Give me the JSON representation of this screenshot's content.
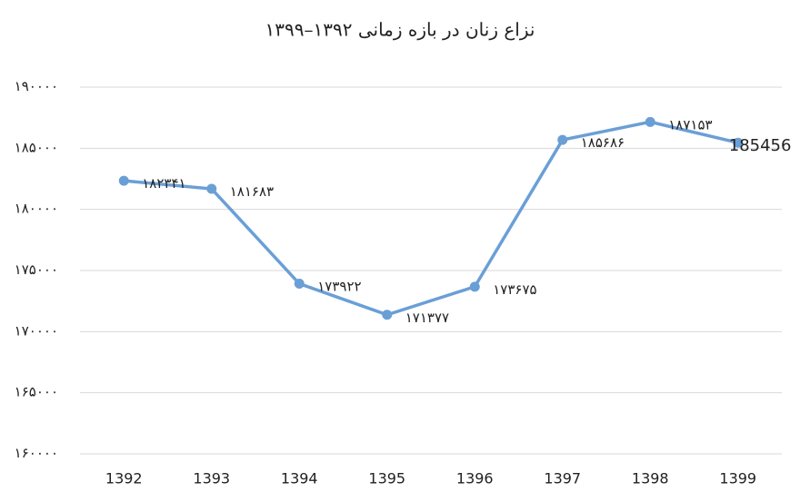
{
  "chart_data": {
    "type": "line",
    "title": "نزاع زنان در بازه زمانی ۱۳۹۲–۱۳۹۹",
    "categories": [
      "1392",
      "1393",
      "1394",
      "1395",
      "1396",
      "1397",
      "1398",
      "1399"
    ],
    "values": [
      182341,
      181683,
      173922,
      171377,
      173675,
      185686,
      187153,
      185456
    ],
    "value_labels": [
      "۱۸۲۳۴۱",
      "۱۸۱۶۸۳",
      "۱۷۳۹۲۲",
      "۱۷۱۳۷۷",
      "۱۷۳۶۷۵",
      "۱۸۵۶۸۶",
      "۱۸۷۱۵۳",
      "185456"
    ],
    "color": "#6a9fd6",
    "ylim": [
      160000,
      190000
    ],
    "yticks": [
      {
        "value": 160000,
        "label": "۱۶۰۰۰۰"
      },
      {
        "value": 165000,
        "label": "۱۶۵۰۰۰"
      },
      {
        "value": 170000,
        "label": "۱۷۰۰۰۰"
      },
      {
        "value": 175000,
        "label": "۱۷۵۰۰۰"
      },
      {
        "value": 180000,
        "label": "۱۸۰۰۰۰"
      },
      {
        "value": 185000,
        "label": "۱۸۵۰۰۰"
      },
      {
        "value": 190000,
        "label": "۱۹۰۰۰۰"
      }
    ],
    "grid": true
  }
}
